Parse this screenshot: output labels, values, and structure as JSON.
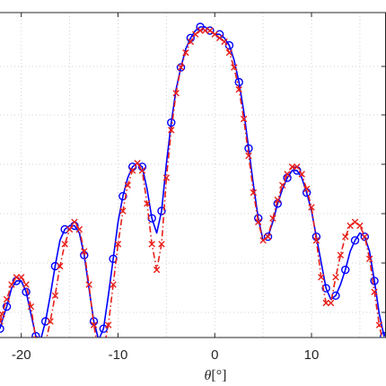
{
  "chart_data": {
    "type": "line",
    "xlabel": "θ[°]",
    "xlim": [
      -22.2,
      17.7
    ],
    "ylim": [
      0,
      1
    ],
    "xticks": [
      -20,
      -10,
      0,
      10
    ],
    "grid": true,
    "legend": "none",
    "series": [
      {
        "color": "#0000ff",
        "line_style": "solid",
        "marker": "circle",
        "x": [
          -22.2,
          -22.0,
          -21.5,
          -21.0,
          -20.5,
          -20.0,
          -19.5,
          -19.0,
          -18.5,
          -18.0,
          -17.5,
          -17.0,
          -16.5,
          -16.0,
          -15.5,
          -15.0,
          -14.5,
          -14.0,
          -13.5,
          -13.0,
          -12.5,
          -12.0,
          -11.5,
          -11.0,
          -10.5,
          -10.0,
          -9.5,
          -9.0,
          -8.5,
          -8.0,
          -7.5,
          -7.0,
          -6.5,
          -6.0,
          -5.5,
          -5.0,
          -4.5,
          -4.0,
          -3.5,
          -3.0,
          -2.5,
          -2.0,
          -1.5,
          -1.0,
          -0.5,
          0.0,
          0.5,
          1.0,
          1.5,
          2.0,
          2.5,
          3.0,
          3.5,
          4.0,
          4.5,
          5.0,
          5.5,
          6.0,
          6.5,
          7.0,
          7.5,
          8.0,
          8.5,
          9.0,
          9.5,
          10.0,
          10.5,
          11.0,
          11.5,
          12.0,
          12.5,
          13.0,
          13.5,
          14.0,
          14.5,
          15.0,
          15.5,
          16.0,
          16.5,
          17.0,
          17.5,
          17.7
        ],
        "y": [
          0.18,
          0.2,
          0.24,
          0.29,
          0.31,
          0.31,
          0.28,
          0.22,
          0.16,
          0.15,
          0.2,
          0.27,
          0.35,
          0.42,
          0.45,
          0.46,
          0.46,
          0.44,
          0.38,
          0.29,
          0.2,
          0.15,
          0.18,
          0.27,
          0.37,
          0.47,
          0.54,
          0.59,
          0.62,
          0.63,
          0.62,
          0.56,
          0.48,
          0.44,
          0.5,
          0.63,
          0.74,
          0.83,
          0.89,
          0.94,
          0.97,
          0.99,
          1.0,
          1.0,
          0.99,
          0.98,
          0.98,
          0.97,
          0.95,
          0.91,
          0.85,
          0.77,
          0.67,
          0.57,
          0.48,
          0.42,
          0.43,
          0.47,
          0.52,
          0.56,
          0.59,
          0.61,
          0.61,
          0.59,
          0.55,
          0.5,
          0.43,
          0.36,
          0.29,
          0.26,
          0.27,
          0.3,
          0.34,
          0.39,
          0.42,
          0.44,
          0.43,
          0.39,
          0.31,
          0.22,
          0.16,
          0.17
        ]
      },
      {
        "color": "#e8201a",
        "line_style": "dashdot",
        "marker": "x",
        "x": [
          -22.2,
          -22.0,
          -21.5,
          -21.0,
          -20.5,
          -20.0,
          -19.5,
          -19.0,
          -18.5,
          -18.0,
          -17.5,
          -17.0,
          -16.5,
          -16.0,
          -15.5,
          -15.0,
          -14.5,
          -14.0,
          -13.5,
          -13.0,
          -12.5,
          -12.0,
          -11.5,
          -11.0,
          -10.5,
          -10.0,
          -9.5,
          -9.0,
          -8.5,
          -8.0,
          -7.5,
          -7.0,
          -6.5,
          -6.0,
          -5.5,
          -5.0,
          -4.5,
          -4.0,
          -3.5,
          -3.0,
          -2.5,
          -2.0,
          -1.5,
          -1.0,
          -0.5,
          0.0,
          0.5,
          1.0,
          1.5,
          2.0,
          2.5,
          3.0,
          3.5,
          4.0,
          4.5,
          5.0,
          5.5,
          6.0,
          6.5,
          7.0,
          7.5,
          8.0,
          8.5,
          9.0,
          9.5,
          10.0,
          10.5,
          11.0,
          11.5,
          12.0,
          12.5,
          13.0,
          13.5,
          14.0,
          14.5,
          15.0,
          15.5,
          16.0,
          16.5,
          17.0,
          17.5,
          17.7
        ],
        "y": [
          0.2,
          0.22,
          0.26,
          0.3,
          0.32,
          0.32,
          0.3,
          0.24,
          0.15,
          0.11,
          0.14,
          0.2,
          0.27,
          0.35,
          0.41,
          0.45,
          0.47,
          0.45,
          0.39,
          0.3,
          0.19,
          0.12,
          0.12,
          0.19,
          0.3,
          0.41,
          0.5,
          0.57,
          0.61,
          0.63,
          0.61,
          0.52,
          0.41,
          0.34,
          0.41,
          0.59,
          0.72,
          0.82,
          0.89,
          0.93,
          0.96,
          0.98,
          0.99,
          0.99,
          0.99,
          0.98,
          0.97,
          0.96,
          0.93,
          0.89,
          0.83,
          0.75,
          0.65,
          0.55,
          0.47,
          0.42,
          0.43,
          0.48,
          0.53,
          0.57,
          0.6,
          0.62,
          0.62,
          0.6,
          0.56,
          0.51,
          0.42,
          0.32,
          0.25,
          0.25,
          0.32,
          0.38,
          0.43,
          0.46,
          0.47,
          0.46,
          0.43,
          0.37,
          0.28,
          0.19,
          0.13,
          0.12
        ]
      }
    ]
  }
}
